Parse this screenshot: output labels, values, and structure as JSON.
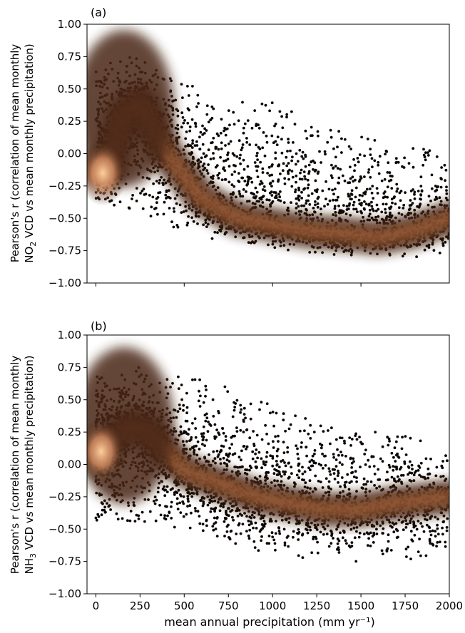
{
  "figure": {
    "xlabel": "mean annual precipitation (mm yr⁻¹)"
  },
  "chart_data": [
    {
      "type": "scatter",
      "panel_label": "(a)",
      "ylabel_line1": "Pearson's r (correlation of mean monthly",
      "ylabel_line2_pre": "NO",
      "ylabel_line2_sub": "2",
      "ylabel_line2_post": " VCD vs mean monthly precipitation)",
      "xlim": [
        -50,
        2000
      ],
      "ylim": [
        -1.0,
        1.0
      ],
      "xticks": [
        0,
        500,
        1000,
        1500
      ],
      "xtick_labels_shown": false,
      "yticks": [
        "1.00",
        "0.75",
        "0.50",
        "0.25",
        "0.00",
        "−0.25",
        "−0.50",
        "−0.75",
        "−1.00"
      ],
      "grid": false,
      "colormap": "copper",
      "upper_envelope": [
        [
          0,
          0.65
        ],
        [
          100,
          0.72
        ],
        [
          250,
          0.77
        ],
        [
          400,
          0.6
        ],
        [
          600,
          0.5
        ],
        [
          800,
          0.4
        ],
        [
          1000,
          0.4
        ],
        [
          1200,
          0.3
        ],
        [
          1400,
          0.2
        ],
        [
          1600,
          0.1
        ],
        [
          1800,
          0.05
        ],
        [
          2000,
          0.0
        ]
      ],
      "lower_envelope": [
        [
          0,
          -0.35
        ],
        [
          100,
          -0.4
        ],
        [
          250,
          -0.45
        ],
        [
          400,
          -0.55
        ],
        [
          600,
          -0.65
        ],
        [
          800,
          -0.7
        ],
        [
          1000,
          -0.75
        ],
        [
          1200,
          -0.78
        ],
        [
          1400,
          -0.8
        ],
        [
          1600,
          -0.8
        ],
        [
          1800,
          -0.8
        ],
        [
          2000,
          -0.8
        ]
      ],
      "density_ridge": [
        [
          0,
          -0.12
        ],
        [
          40,
          -0.15
        ],
        [
          80,
          -0.1
        ],
        [
          150,
          0.3
        ],
        [
          250,
          0.4
        ],
        [
          400,
          0.0
        ],
        [
          600,
          -0.35
        ],
        [
          800,
          -0.5
        ],
        [
          1000,
          -0.55
        ],
        [
          1200,
          -0.6
        ],
        [
          1400,
          -0.62
        ],
        [
          1600,
          -0.65
        ],
        [
          1800,
          -0.6
        ],
        [
          2000,
          -0.5
        ]
      ],
      "density_peak": [
        40,
        -0.15
      ]
    },
    {
      "type": "scatter",
      "panel_label": "(b)",
      "ylabel_line1": "Pearson's r (correlation of mean monthly",
      "ylabel_line2_pre": "NH",
      "ylabel_line2_sub": "3",
      "ylabel_line2_post": " VCD vs mean monthly precipitation)",
      "xlim": [
        -50,
        2000
      ],
      "ylim": [
        -1.0,
        1.0
      ],
      "xticks": [
        0,
        250,
        500,
        750,
        1000,
        1250,
        1500,
        1750,
        2000
      ],
      "xtick_labels": [
        "0",
        "250",
        "500",
        "750",
        "1000",
        "1250",
        "1500",
        "1750",
        "2000"
      ],
      "xtick_labels_shown": true,
      "yticks": [
        "1.00",
        "0.75",
        "0.50",
        "0.25",
        "0.00",
        "−0.25",
        "−0.50",
        "−0.75",
        "−1.00"
      ],
      "grid": false,
      "colormap": "copper",
      "upper_envelope": [
        [
          0,
          0.7
        ],
        [
          100,
          0.72
        ],
        [
          250,
          0.76
        ],
        [
          500,
          0.68
        ],
        [
          750,
          0.62
        ],
        [
          1000,
          0.45
        ],
        [
          1250,
          0.35
        ],
        [
          1500,
          0.25
        ],
        [
          1750,
          0.25
        ],
        [
          2000,
          0.1
        ]
      ],
      "lower_envelope": [
        [
          0,
          -0.45
        ],
        [
          100,
          -0.45
        ],
        [
          250,
          -0.45
        ],
        [
          500,
          -0.5
        ],
        [
          750,
          -0.6
        ],
        [
          1000,
          -0.7
        ],
        [
          1250,
          -0.78
        ],
        [
          1500,
          -0.78
        ],
        [
          1750,
          -0.75
        ],
        [
          2000,
          -0.7
        ]
      ],
      "density_ridge": [
        [
          0,
          0.1
        ],
        [
          50,
          0.15
        ],
        [
          100,
          0.2
        ],
        [
          200,
          0.3
        ],
        [
          300,
          0.25
        ],
        [
          400,
          0.1
        ],
        [
          500,
          -0.05
        ],
        [
          700,
          -0.15
        ],
        [
          900,
          -0.25
        ],
        [
          1100,
          -0.3
        ],
        [
          1300,
          -0.35
        ],
        [
          1500,
          -0.35
        ],
        [
          1700,
          -0.3
        ],
        [
          2000,
          -0.25
        ]
      ],
      "density_peak": [
        30,
        0.1
      ]
    }
  ]
}
